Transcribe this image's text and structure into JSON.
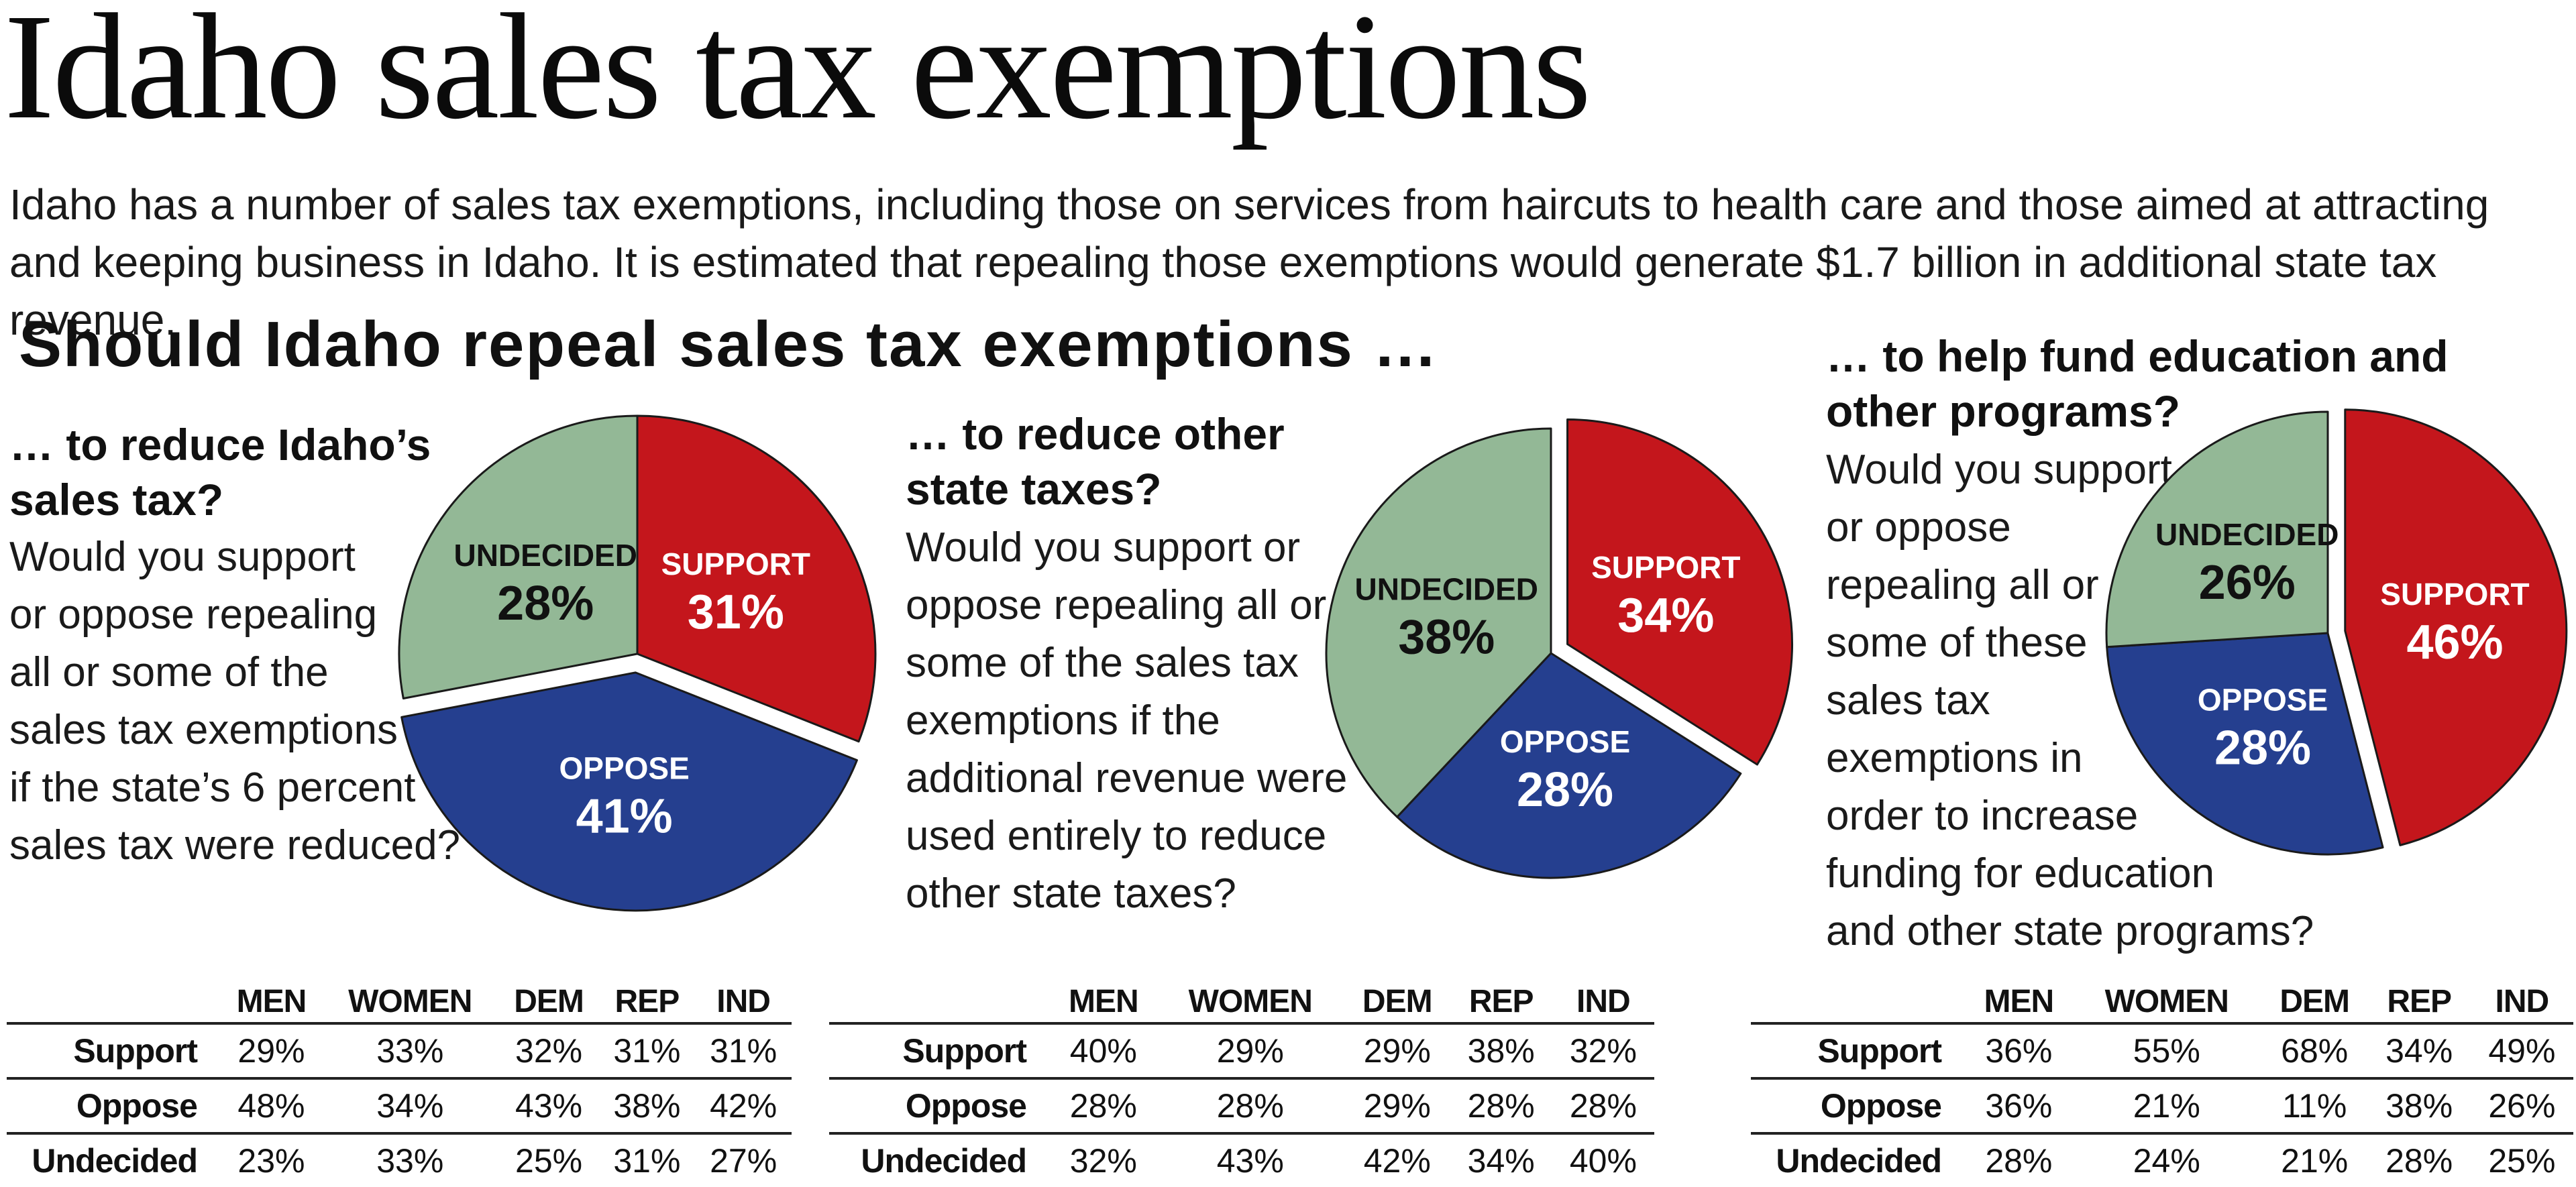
{
  "title": "Idaho sales tax exemptions",
  "intro": "Idaho has a number of sales tax exemptions, including those on services from haircuts to health care and those aimed at attracting and keeping business in Idaho. It is estimated that repealing those exemptions would generate $1.7 billion in additional state tax revenue.",
  "question_head": "Should Idaho repeal sales tax exemptions …",
  "colors": {
    "support": "#c4161c",
    "oppose": "#253f8f",
    "undecided": "#93b896"
  },
  "chart_data": [
    {
      "type": "pie",
      "subhead_lines": [
        "… to reduce Idaho’s",
        "sales tax?"
      ],
      "question_lines": [
        "Would you support",
        "or oppose repealing",
        "all or some of the",
        "sales tax exemptions",
        "if the state’s 6 percent",
        "sales tax were reduced?"
      ],
      "slices": [
        {
          "label": "SUPPORT",
          "value": 31,
          "value_text": "31%",
          "color": "#c4161c"
        },
        {
          "label": "OPPOSE",
          "value": 41,
          "value_text": "41%",
          "color": "#253f8f"
        },
        {
          "label": "UNDECIDED",
          "value": 28,
          "value_text": "28%",
          "color": "#93b896"
        }
      ],
      "exploded": "OPPOSE",
      "table": {
        "columns": [
          "MEN",
          "WOMEN",
          "DEM",
          "REP",
          "IND"
        ],
        "rows": [
          {
            "label": "Support",
            "values": [
              "29%",
              "33%",
              "32%",
              "31%",
              "31%"
            ]
          },
          {
            "label": "Oppose",
            "values": [
              "48%",
              "34%",
              "43%",
              "38%",
              "42%"
            ]
          },
          {
            "label": "Undecided",
            "values": [
              "23%",
              "33%",
              "25%",
              "31%",
              "27%"
            ]
          }
        ]
      }
    },
    {
      "type": "pie",
      "subhead_lines": [
        "… to reduce other",
        "state taxes?"
      ],
      "question_lines": [
        "Would you support or",
        "oppose repealing all or",
        "some of the sales tax",
        "exemptions if the",
        "additional revenue were",
        "used entirely to reduce",
        "other state taxes?"
      ],
      "slices": [
        {
          "label": "SUPPORT",
          "value": 34,
          "value_text": "34%",
          "color": "#c4161c"
        },
        {
          "label": "OPPOSE",
          "value": 28,
          "value_text": "28%",
          "color": "#253f8f"
        },
        {
          "label": "UNDECIDED",
          "value": 38,
          "value_text": "38%",
          "color": "#93b896"
        }
      ],
      "exploded": "SUPPORT",
      "table": {
        "columns": [
          "MEN",
          "WOMEN",
          "DEM",
          "REP",
          "IND"
        ],
        "rows": [
          {
            "label": "Support",
            "values": [
              "40%",
              "29%",
              "29%",
              "38%",
              "32%"
            ]
          },
          {
            "label": "Oppose",
            "values": [
              "28%",
              "28%",
              "29%",
              "28%",
              "28%"
            ]
          },
          {
            "label": "Undecided",
            "values": [
              "32%",
              "43%",
              "42%",
              "34%",
              "40%"
            ]
          }
        ]
      }
    },
    {
      "type": "pie",
      "subhead_lines": [
        "… to help fund education and",
        "other programs?"
      ],
      "question_lines": [
        "Would you support",
        "or oppose",
        "repealing all or",
        "some of these",
        "sales tax",
        "exemptions in",
        "order to increase",
        "funding for education",
        "and other state programs?"
      ],
      "slices": [
        {
          "label": "SUPPORT",
          "value": 46,
          "value_text": "46%",
          "color": "#c4161c"
        },
        {
          "label": "OPPOSE",
          "value": 28,
          "value_text": "28%",
          "color": "#253f8f"
        },
        {
          "label": "UNDECIDED",
          "value": 26,
          "value_text": "26%",
          "color": "#93b896"
        }
      ],
      "exploded": "SUPPORT",
      "table": {
        "columns": [
          "MEN",
          "WOMEN",
          "DEM",
          "REP",
          "IND"
        ],
        "rows": [
          {
            "label": "Support",
            "values": [
              "36%",
              "55%",
              "68%",
              "34%",
              "49%"
            ]
          },
          {
            "label": "Oppose",
            "values": [
              "36%",
              "21%",
              "11%",
              "38%",
              "26%"
            ]
          },
          {
            "label": "Undecided",
            "values": [
              "28%",
              "24%",
              "21%",
              "28%",
              "25%"
            ]
          }
        ]
      }
    }
  ]
}
